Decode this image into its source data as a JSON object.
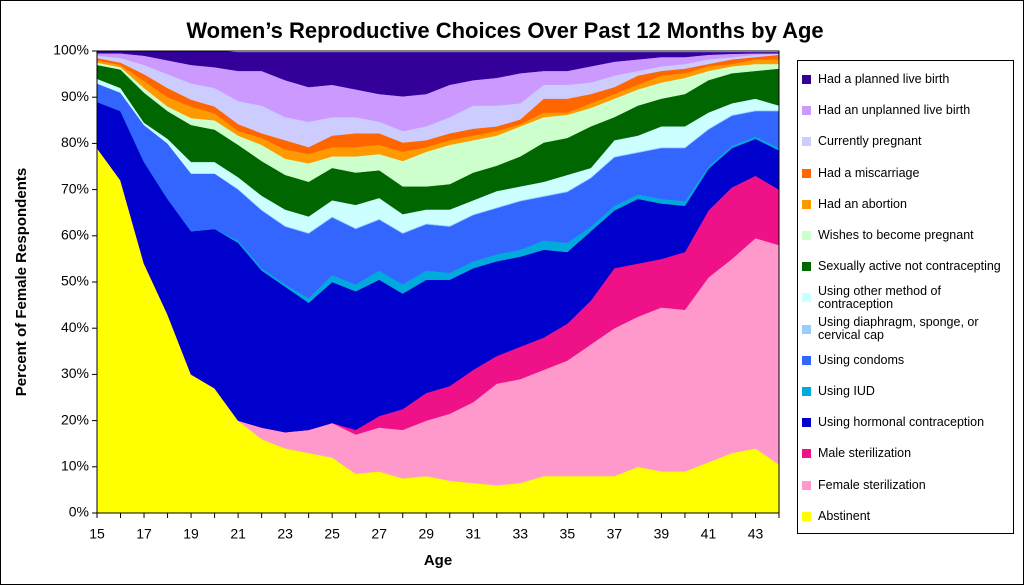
{
  "chart_data": {
    "type": "stacked_area",
    "title": "Women’s Reproductive Choices Over Past 12 Months by Age",
    "x_label": "Age",
    "y_label": "Percent of Female Respondents",
    "x": [
      15,
      16,
      17,
      18,
      19,
      20,
      21,
      22,
      23,
      24,
      25,
      26,
      27,
      28,
      29,
      30,
      31,
      32,
      33,
      34,
      35,
      36,
      37,
      38,
      39,
      40,
      41,
      42,
      43,
      44
    ],
    "xlim": [
      15,
      44
    ],
    "xticks": [
      15,
      17,
      19,
      21,
      23,
      25,
      27,
      29,
      31,
      33,
      35,
      37,
      39,
      41,
      43
    ],
    "ylim": [
      0,
      100
    ],
    "yticks": [
      {
        "value": 0,
        "label": "0%"
      },
      {
        "value": 10,
        "label": "10%"
      },
      {
        "value": 20,
        "label": "20%"
      },
      {
        "value": 30,
        "label": "30%"
      },
      {
        "value": 40,
        "label": "40%"
      },
      {
        "value": 50,
        "label": "50%"
      },
      {
        "value": 60,
        "label": "60%"
      },
      {
        "value": 70,
        "label": "70%"
      },
      {
        "value": 80,
        "label": "80%"
      },
      {
        "value": 90,
        "label": "90%"
      },
      {
        "value": 100,
        "label": "100%"
      }
    ],
    "series": [
      {
        "name": "Abstinent",
        "color": "#ffff00",
        "values": [
          79,
          72,
          54,
          43,
          30,
          27,
          20,
          16,
          14,
          13,
          12,
          8.5,
          9,
          7.5,
          8,
          7,
          6.5,
          6,
          6.5,
          8,
          8,
          8,
          8,
          10,
          9,
          9,
          11,
          13,
          14,
          10.5
        ]
      },
      {
        "name": "Female sterilization",
        "color": "#ff99cc",
        "values": [
          0,
          0,
          0,
          0,
          0,
          0,
          0,
          2.5,
          3.5,
          5,
          7.5,
          8.5,
          9.5,
          10.5,
          12,
          14.5,
          17.5,
          22,
          22.5,
          23,
          25,
          28.5,
          32,
          32.5,
          35.5,
          35,
          40,
          42,
          45.5,
          47.5
        ]
      },
      {
        "name": "Male sterilization",
        "color": "#ee1188",
        "values": [
          0,
          0,
          0,
          0,
          0,
          0,
          0,
          0,
          0,
          0,
          0,
          1,
          2.5,
          4.5,
          6,
          6,
          7,
          6,
          7,
          7,
          8,
          9.5,
          13,
          11.5,
          10.5,
          12.5,
          14.5,
          15.5,
          13.5,
          12
        ]
      },
      {
        "name": "Using hormonal contraception",
        "color": "#0000cc",
        "values": [
          10,
          15,
          22,
          25,
          31,
          34.5,
          38.5,
          34,
          31.5,
          27.5,
          30.5,
          30,
          29.5,
          25,
          24.5,
          23,
          22,
          20.5,
          19.5,
          19,
          15.5,
          15,
          12.5,
          14,
          12,
          10,
          9,
          8.5,
          8,
          8.5
        ]
      },
      {
        "name": "Using IUD",
        "color": "#00aadd",
        "values": [
          0,
          0,
          0,
          0,
          0,
          0,
          0.5,
          0.5,
          0.5,
          1,
          1.5,
          1.5,
          2,
          2,
          2,
          1.5,
          1.5,
          1.5,
          1.5,
          2,
          2,
          1,
          1,
          1,
          1,
          1,
          0.5,
          0.5,
          0.5,
          0.5
        ]
      },
      {
        "name": "Using condoms",
        "color": "#3366ff",
        "values": [
          4,
          4,
          8,
          12,
          12.5,
          12,
          11,
          12.5,
          12.5,
          14,
          12.5,
          12,
          11,
          11,
          10,
          10,
          10,
          10,
          10.5,
          9.5,
          11,
          10.5,
          10.5,
          9,
          11,
          11.5,
          8,
          6.5,
          5.5,
          8
        ]
      },
      {
        "name": "Using diaphragm, sponge, or cervical cap",
        "color": "#99ccff",
        "values": [
          0,
          0,
          0,
          0,
          0,
          0,
          0.2,
          0.2,
          0.2,
          0.2,
          0.2,
          0.2,
          0.2,
          0.2,
          0.2,
          0.2,
          0.2,
          0.2,
          0.2,
          0.2,
          0.2,
          0.2,
          0.2,
          0.2,
          0.2,
          0.2,
          0.2,
          0.2,
          0.2,
          0.2
        ]
      },
      {
        "name": "Using other method of contraception",
        "color": "#ccffff",
        "values": [
          1,
          1,
          0.5,
          1,
          2.5,
          2.5,
          2.5,
          3,
          3.5,
          3.5,
          3.5,
          5,
          4.5,
          4,
          3,
          3.5,
          3,
          3.5,
          3,
          3,
          3.5,
          2,
          3.5,
          3.5,
          4.5,
          4.5,
          3.5,
          2.5,
          2.5,
          1
        ]
      },
      {
        "name": "Sexually active not contracepting",
        "color": "#006600",
        "values": [
          3,
          4,
          6.5,
          6,
          8,
          7,
          7,
          7.5,
          7.5,
          7.5,
          7,
          7,
          6,
          6,
          5,
          5.5,
          6,
          5.5,
          6.5,
          8.5,
          8,
          9,
          5,
          6.5,
          6,
          7,
          7,
          6.5,
          6,
          8
        ]
      },
      {
        "name": "Wishes to become pregnant",
        "color": "#ccffcc",
        "values": [
          0.5,
          0.5,
          1,
          1,
          1.5,
          2,
          2,
          3.5,
          3.5,
          4,
          2.5,
          3.5,
          3.5,
          5.5,
          7.5,
          8.5,
          7,
          6.5,
          6.5,
          5.5,
          5,
          4,
          4,
          3.5,
          3.5,
          3.5,
          2,
          1.5,
          1.5,
          1
        ]
      },
      {
        "name": "Had an abortion",
        "color": "#ff9900",
        "values": [
          0.5,
          0.5,
          1.5,
          2,
          2.5,
          1.5,
          1,
          1.5,
          2,
          2,
          2,
          2,
          2,
          2,
          1,
          1,
          1,
          1,
          0.5,
          1,
          0.5,
          1,
          1,
          1,
          1.5,
          1,
          1,
          0.5,
          1,
          1
        ]
      },
      {
        "name": "Had a miscarriage",
        "color": "#ff6600",
        "values": [
          0.5,
          0.5,
          1.5,
          2,
          1.5,
          1.5,
          1.5,
          1,
          2,
          1.5,
          2.5,
          3,
          2.5,
          2,
          1.5,
          1.5,
          1.5,
          1,
          1,
          3,
          3,
          2,
          1.5,
          2,
          1,
          1,
          0.5,
          1,
          0.5,
          1
        ]
      },
      {
        "name": "Currently pregnant",
        "color": "#ccccff",
        "values": [
          0.5,
          1,
          2,
          3,
          3.5,
          4,
          5,
          6,
          5,
          5.5,
          4,
          3.5,
          2.5,
          2.5,
          3,
          3.5,
          5,
          4.5,
          3.5,
          3,
          3,
          2.5,
          2.5,
          1,
          1,
          1,
          1,
          0.5,
          0.5,
          0.2
        ]
      },
      {
        "name": "Had an unplanned live birth",
        "color": "#cc99ff",
        "values": [
          0.5,
          1,
          2,
          3,
          4,
          4.5,
          6.5,
          7.5,
          8,
          7.5,
          7,
          6,
          6,
          7.5,
          7,
          7,
          5.5,
          6,
          6.5,
          3,
          3,
          3.5,
          3,
          2.5,
          2,
          1.5,
          1,
          0.7,
          0.3,
          0.1
        ]
      },
      {
        "name": "Had a planned live birth",
        "color": "#330099",
        "values": [
          0.5,
          0.5,
          1,
          2,
          3,
          3.5,
          4,
          4,
          6,
          7.5,
          7,
          8,
          9,
          9.5,
          9,
          7,
          6,
          5.5,
          4.5,
          4,
          4,
          3,
          2,
          1.5,
          1,
          1,
          0.5,
          0.3,
          0.2,
          0.2
        ]
      }
    ]
  }
}
